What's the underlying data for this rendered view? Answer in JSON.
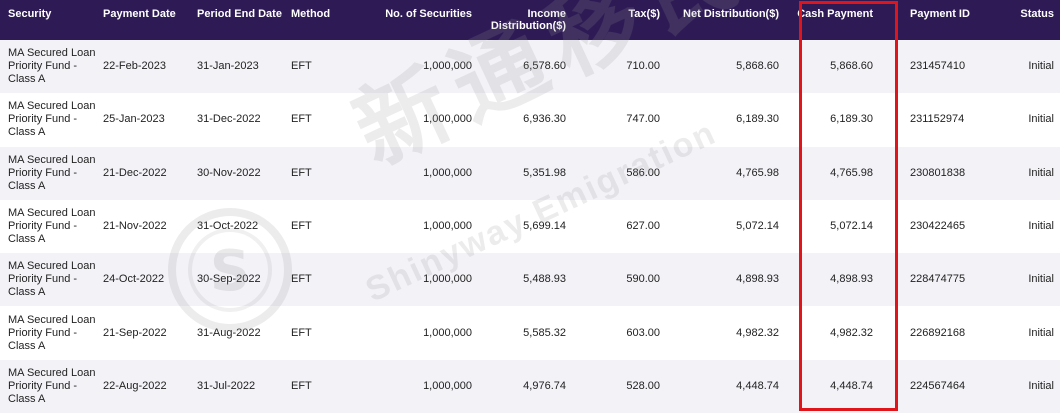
{
  "table": {
    "columns": [
      {
        "key": "security",
        "label": "Security"
      },
      {
        "key": "payment_date",
        "label": "Payment Date"
      },
      {
        "key": "period_end_date",
        "label": "Period End Date"
      },
      {
        "key": "method",
        "label": "Method"
      },
      {
        "key": "no_of_securities",
        "label": "No. of Securities"
      },
      {
        "key": "income_distribution",
        "label": "Income\nDistribution($)"
      },
      {
        "key": "tax",
        "label": "Tax($)"
      },
      {
        "key": "net_distribution",
        "label": "Net Distribution($)"
      },
      {
        "key": "cash_payment",
        "label": "Cash Payment"
      },
      {
        "key": "payment_id",
        "label": "Payment ID"
      },
      {
        "key": "status",
        "label": "Status"
      }
    ],
    "rows": [
      {
        "security": "MA Secured Loan\nPriority Fund -\nClass A",
        "payment_date": "22-Feb-2023",
        "period_end_date": "31-Jan-2023",
        "method": "EFT",
        "no_of_securities": "1,000,000",
        "income_distribution": "6,578.60",
        "tax": "710.00",
        "net_distribution": "5,868.60",
        "cash_payment": "5,868.60",
        "payment_id": "231457410",
        "status": "Initial"
      },
      {
        "security": "MA Secured Loan\nPriority Fund -\nClass A",
        "payment_date": "25-Jan-2023",
        "period_end_date": "31-Dec-2022",
        "method": "EFT",
        "no_of_securities": "1,000,000",
        "income_distribution": "6,936.30",
        "tax": "747.00",
        "net_distribution": "6,189.30",
        "cash_payment": "6,189.30",
        "payment_id": "231152974",
        "status": "Initial"
      },
      {
        "security": "MA Secured Loan\nPriority Fund -\nClass A",
        "payment_date": "21-Dec-2022",
        "period_end_date": "30-Nov-2022",
        "method": "EFT",
        "no_of_securities": "1,000,000",
        "income_distribution": "5,351.98",
        "tax": "586.00",
        "net_distribution": "4,765.98",
        "cash_payment": "4,765.98",
        "payment_id": "230801838",
        "status": "Initial"
      },
      {
        "security": "MA Secured Loan\nPriority Fund -\nClass A",
        "payment_date": "21-Nov-2022",
        "period_end_date": "31-Oct-2022",
        "method": "EFT",
        "no_of_securities": "1,000,000",
        "income_distribution": "5,699.14",
        "tax": "627.00",
        "net_distribution": "5,072.14",
        "cash_payment": "5,072.14",
        "payment_id": "230422465",
        "status": "Initial"
      },
      {
        "security": "MA Secured Loan\nPriority Fund -\nClass A",
        "payment_date": "24-Oct-2022",
        "period_end_date": "30-Sep-2022",
        "method": "EFT",
        "no_of_securities": "1,000,000",
        "income_distribution": "5,488.93",
        "tax": "590.00",
        "net_distribution": "4,898.93",
        "cash_payment": "4,898.93",
        "payment_id": "228474775",
        "status": "Initial"
      },
      {
        "security": "MA Secured Loan\nPriority Fund -\nClass A",
        "payment_date": "21-Sep-2022",
        "period_end_date": "31-Aug-2022",
        "method": "EFT",
        "no_of_securities": "1,000,000",
        "income_distribution": "5,585.32",
        "tax": "603.00",
        "net_distribution": "4,982.32",
        "cash_payment": "4,982.32",
        "payment_id": "226892168",
        "status": "Initial"
      },
      {
        "security": "MA Secured Loan\nPriority Fund -\nClass A",
        "payment_date": "22-Aug-2022",
        "period_end_date": "31-Jul-2022",
        "method": "EFT",
        "no_of_securities": "1,000,000",
        "income_distribution": "4,976.74",
        "tax": "528.00",
        "net_distribution": "4,448.74",
        "cash_payment": "4,448.74",
        "payment_id": "224567464",
        "status": "Initial"
      }
    ]
  },
  "watermark": {
    "chinese": "新通移民",
    "english": "Shinyway Emigration",
    "logo_letter": "S"
  },
  "colors": {
    "header_bg": "#2e1b55",
    "stripe_bg": "#f3f2f7",
    "highlight_border": "#e0141b"
  }
}
